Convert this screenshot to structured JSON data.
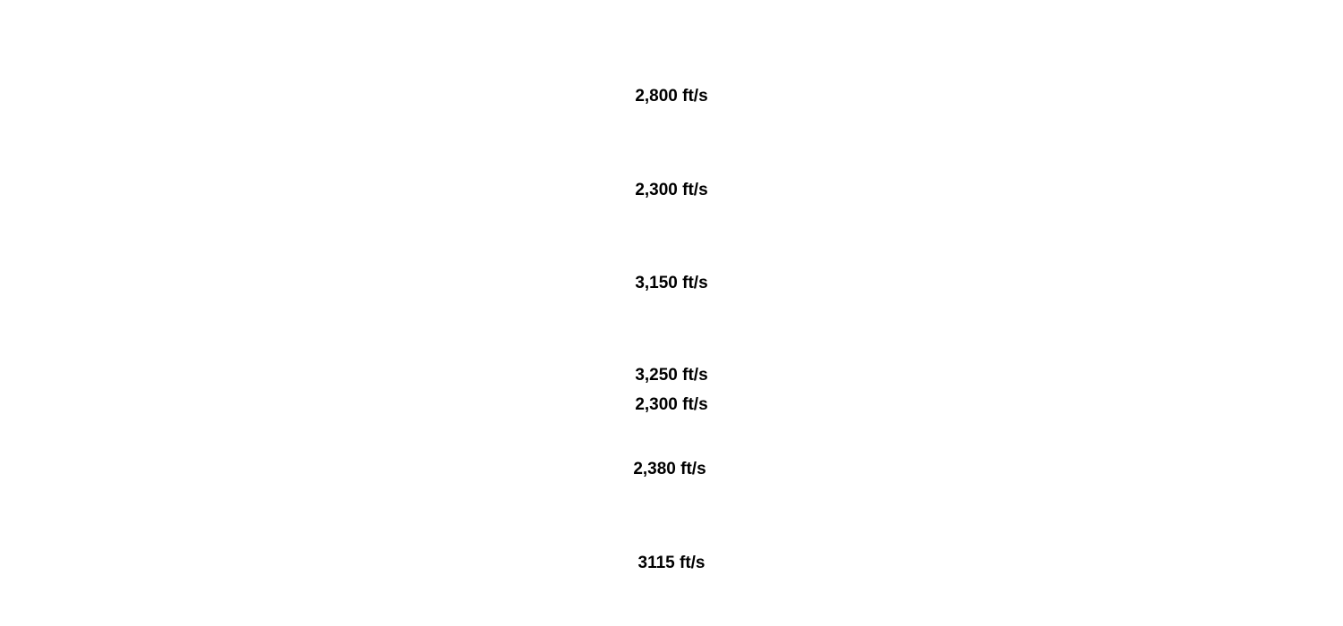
{
  "labels": [
    "2,800 ft/s",
    "2,300 ft/s",
    "3,150 ft/s",
    "3,250 ft/s",
    "2,300 ft/s",
    "2,380 ft/s",
    "3115 ft/s"
  ]
}
